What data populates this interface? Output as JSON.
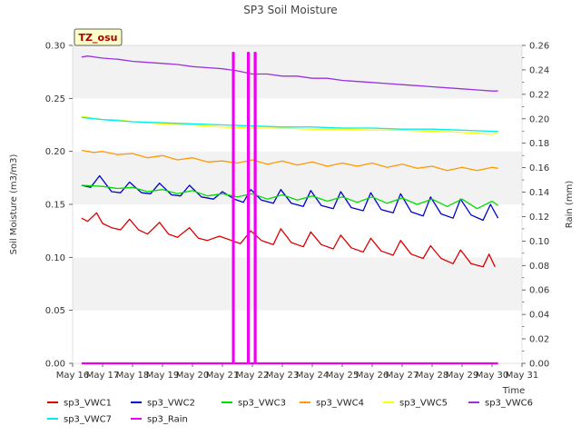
{
  "chart_data": {
    "type": "line",
    "title": "SP3 Soil Moisture",
    "xlabel": "Time",
    "ylabel": "Soil Moisture (m3/m3)",
    "y2label": "Rain (mm)",
    "badge": "TZ_osu",
    "xlim": [
      16,
      31
    ],
    "ylim": [
      0,
      0.3
    ],
    "y2lim": [
      0,
      0.26
    ],
    "x_ticks": [
      16,
      17,
      18,
      19,
      20,
      21,
      22,
      23,
      24,
      25,
      26,
      27,
      28,
      29,
      30,
      31
    ],
    "x_tick_labels": [
      "May 16",
      "May 17",
      "May 18",
      "May 19",
      "May 20",
      "May 21",
      "May 22",
      "May 23",
      "May 24",
      "May 25",
      "May 26",
      "May 27",
      "May 28",
      "May 29",
      "May 30",
      "May 31"
    ],
    "y_ticks": [
      0.0,
      0.05,
      0.1,
      0.15,
      0.2,
      0.25,
      0.3
    ],
    "y_tick_labels": [
      "0.00",
      "0.05",
      "0.10",
      "0.15",
      "0.20",
      "0.25",
      "0.30"
    ],
    "y2_ticks": [
      0.0,
      0.02,
      0.04,
      0.06,
      0.08,
      0.1,
      0.12,
      0.14,
      0.16,
      0.18,
      0.2,
      0.22,
      0.24,
      0.26
    ],
    "y2_tick_labels": [
      "0.00",
      "0.02",
      "0.04",
      "0.06",
      "0.08",
      "0.10",
      "0.12",
      "0.14",
      "0.16",
      "0.18",
      "0.20",
      "0.22",
      "0.24",
      "0.26"
    ],
    "grid": "horizontal bands",
    "legend_placement": "bottom",
    "series": [
      {
        "name": "sp3_VWC1",
        "color": "#dd0000",
        "axis": "left",
        "x": [
          16.3,
          16.5,
          16.8,
          17.0,
          17.3,
          17.6,
          17.9,
          18.2,
          18.5,
          18.9,
          19.2,
          19.5,
          19.9,
          20.2,
          20.5,
          20.9,
          21.3,
          21.6,
          21.95,
          22.3,
          22.7,
          22.95,
          23.3,
          23.7,
          23.95,
          24.3,
          24.7,
          24.95,
          25.3,
          25.7,
          25.95,
          26.3,
          26.7,
          26.95,
          27.3,
          27.7,
          27.95,
          28.3,
          28.7,
          28.95,
          29.3,
          29.7,
          29.9,
          30.1
        ],
        "y": [
          0.137,
          0.134,
          0.142,
          0.132,
          0.128,
          0.126,
          0.136,
          0.126,
          0.122,
          0.133,
          0.122,
          0.119,
          0.128,
          0.118,
          0.116,
          0.12,
          0.116,
          0.113,
          0.125,
          0.116,
          0.112,
          0.127,
          0.114,
          0.11,
          0.124,
          0.112,
          0.108,
          0.121,
          0.109,
          0.105,
          0.118,
          0.106,
          0.102,
          0.116,
          0.103,
          0.099,
          0.111,
          0.099,
          0.094,
          0.107,
          0.094,
          0.091,
          0.103,
          0.091
        ]
      },
      {
        "name": "sp3_VWC2",
        "color": "#0000cc",
        "axis": "left",
        "x": [
          16.3,
          16.6,
          16.9,
          17.3,
          17.6,
          17.9,
          18.3,
          18.6,
          18.9,
          19.3,
          19.6,
          19.9,
          20.3,
          20.7,
          21.0,
          21.4,
          21.7,
          21.95,
          22.3,
          22.7,
          22.95,
          23.3,
          23.7,
          23.95,
          24.3,
          24.7,
          24.95,
          25.3,
          25.7,
          25.95,
          26.3,
          26.7,
          26.95,
          27.3,
          27.7,
          27.95,
          28.3,
          28.7,
          28.95,
          29.3,
          29.7,
          29.95,
          30.2
        ],
        "y": [
          0.168,
          0.166,
          0.177,
          0.162,
          0.161,
          0.171,
          0.161,
          0.16,
          0.17,
          0.159,
          0.158,
          0.168,
          0.157,
          0.155,
          0.162,
          0.155,
          0.152,
          0.164,
          0.154,
          0.151,
          0.164,
          0.151,
          0.148,
          0.163,
          0.149,
          0.146,
          0.162,
          0.147,
          0.144,
          0.161,
          0.145,
          0.142,
          0.16,
          0.143,
          0.139,
          0.157,
          0.141,
          0.137,
          0.155,
          0.14,
          0.135,
          0.15,
          0.137
        ]
      },
      {
        "name": "sp3_VWC3",
        "color": "#00dd00",
        "axis": "left",
        "x": [
          16.3,
          17.0,
          17.5,
          18.0,
          18.5,
          19.0,
          19.5,
          20.0,
          20.5,
          21.0,
          21.5,
          22.0,
          22.5,
          23.0,
          23.5,
          24.0,
          24.5,
          25.0,
          25.5,
          26.0,
          26.5,
          27.0,
          27.5,
          28.0,
          28.5,
          29.0,
          29.5,
          30.0,
          30.2
        ],
        "y": [
          0.168,
          0.167,
          0.165,
          0.166,
          0.162,
          0.164,
          0.16,
          0.163,
          0.158,
          0.16,
          0.157,
          0.16,
          0.155,
          0.159,
          0.154,
          0.158,
          0.153,
          0.157,
          0.152,
          0.157,
          0.151,
          0.156,
          0.15,
          0.155,
          0.148,
          0.155,
          0.146,
          0.153,
          0.149
        ]
      },
      {
        "name": "sp3_VWC4",
        "color": "#ff9900",
        "axis": "left",
        "x": [
          16.3,
          16.7,
          17.0,
          17.5,
          18.0,
          18.5,
          19.0,
          19.5,
          20.0,
          20.5,
          21.0,
          21.5,
          22.0,
          22.5,
          23.0,
          23.5,
          24.0,
          24.5,
          25.0,
          25.5,
          26.0,
          26.5,
          27.0,
          27.5,
          28.0,
          28.5,
          29.0,
          29.5,
          30.0,
          30.2
        ],
        "y": [
          0.201,
          0.199,
          0.2,
          0.197,
          0.198,
          0.194,
          0.196,
          0.192,
          0.194,
          0.19,
          0.191,
          0.189,
          0.192,
          0.188,
          0.191,
          0.187,
          0.19,
          0.186,
          0.189,
          0.186,
          0.189,
          0.185,
          0.188,
          0.184,
          0.186,
          0.182,
          0.185,
          0.182,
          0.185,
          0.184
        ]
      },
      {
        "name": "sp3_VWC5",
        "color": "#ffff00",
        "axis": "left",
        "x": [
          16.3,
          17.0,
          17.5,
          18.0,
          19.0,
          20.0,
          21.0,
          22.0,
          23.0,
          24.0,
          25.0,
          26.0,
          27.0,
          28.0,
          29.0,
          29.5,
          30.0,
          30.2
        ],
        "y": [
          0.233,
          0.23,
          0.23,
          0.228,
          0.226,
          0.225,
          0.223,
          0.222,
          0.222,
          0.221,
          0.221,
          0.22,
          0.22,
          0.219,
          0.218,
          0.217,
          0.216,
          0.218
        ]
      },
      {
        "name": "sp3_VWC6",
        "color": "#9933dd",
        "axis": "left",
        "x": [
          16.3,
          16.5,
          17.0,
          17.5,
          18.0,
          18.5,
          19.0,
          19.5,
          20.0,
          20.5,
          21.0,
          21.5,
          22.0,
          22.5,
          23.0,
          23.5,
          24.0,
          24.5,
          25.0,
          25.5,
          26.0,
          26.5,
          27.0,
          27.5,
          28.0,
          28.5,
          29.0,
          29.5,
          30.0,
          30.2
        ],
        "y": [
          0.289,
          0.29,
          0.288,
          0.287,
          0.285,
          0.284,
          0.283,
          0.282,
          0.28,
          0.279,
          0.278,
          0.276,
          0.273,
          0.273,
          0.271,
          0.271,
          0.269,
          0.269,
          0.267,
          0.266,
          0.265,
          0.264,
          0.263,
          0.262,
          0.261,
          0.26,
          0.259,
          0.258,
          0.257,
          0.257
        ]
      },
      {
        "name": "sp3_VWC7",
        "color": "#00eeee",
        "axis": "left",
        "x": [
          16.3,
          17.0,
          17.5,
          18.0,
          19.0,
          20.0,
          21.0,
          22.0,
          23.0,
          24.0,
          25.0,
          26.0,
          27.0,
          28.0,
          29.0,
          30.0,
          30.2
        ],
        "y": [
          0.232,
          0.23,
          0.229,
          0.228,
          0.227,
          0.226,
          0.225,
          0.224,
          0.223,
          0.223,
          0.222,
          0.222,
          0.221,
          0.221,
          0.22,
          0.219,
          0.219
        ]
      },
      {
        "name": "sp3_Rain",
        "color": "#ee00ee",
        "axis": "right",
        "x": [
          16.3,
          21.35,
          21.35,
          21.38,
          21.38,
          21.85,
          21.85,
          21.88,
          21.88,
          22.08,
          22.08,
          22.11,
          22.11,
          30.2
        ],
        "y": [
          0,
          0,
          0.254,
          0.254,
          0,
          0,
          0.254,
          0.254,
          0,
          0,
          0.254,
          0.254,
          0,
          0
        ]
      }
    ]
  }
}
